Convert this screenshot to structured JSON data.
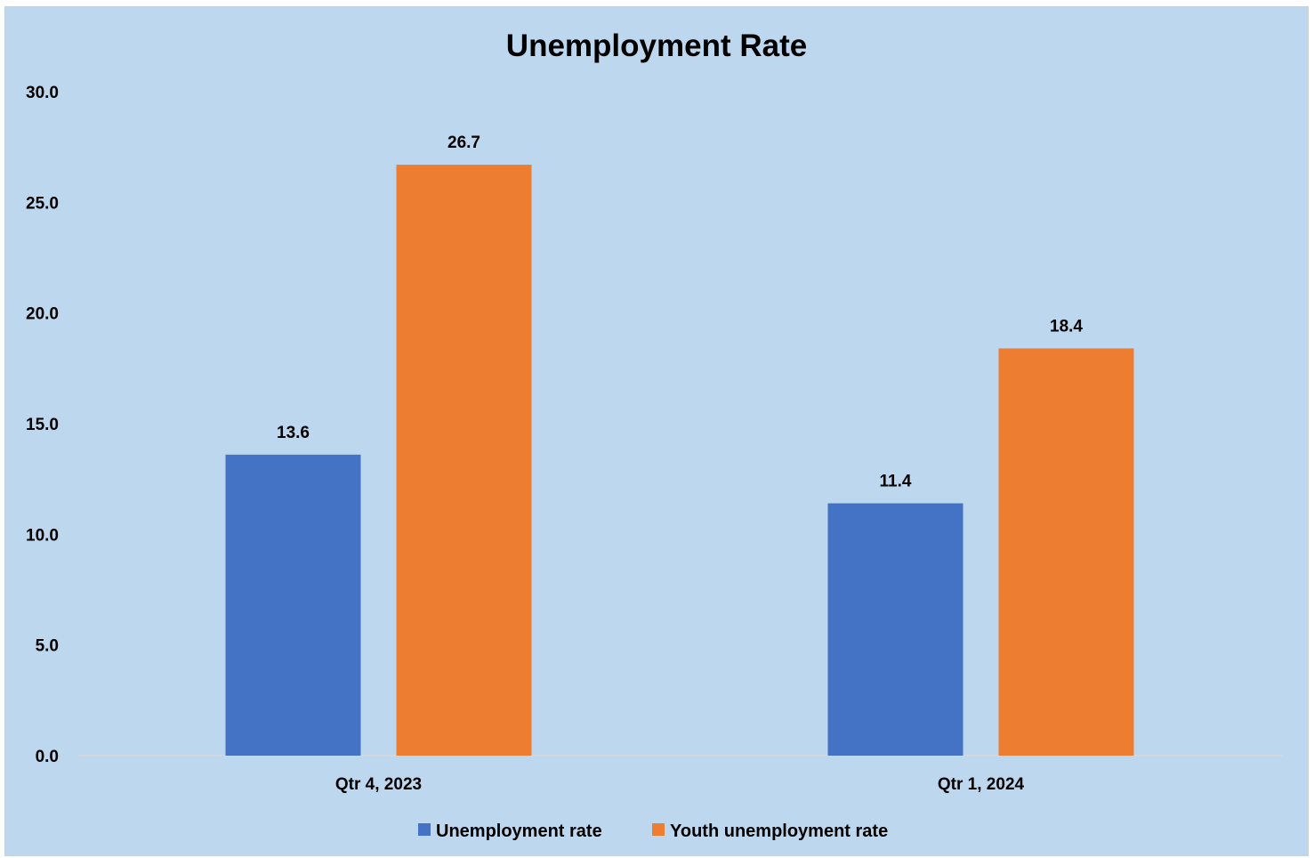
{
  "chart_data": {
    "type": "bar",
    "title": "Unemployment Rate",
    "xlabel": "",
    "ylabel": "",
    "categories": [
      "Qtr 4, 2023",
      "Qtr 1, 2024"
    ],
    "series": [
      {
        "name": "Unemployment rate",
        "values": [
          13.6,
          11.4
        ],
        "color": "#4472c4"
      },
      {
        "name": "Youth unemployment rate",
        "values": [
          26.7,
          18.4
        ],
        "color": "#ed7d31"
      }
    ],
    "ylim": [
      0,
      30
    ],
    "yticks": [
      "0.0",
      "5.0",
      "10.0",
      "15.0",
      "20.0",
      "25.0",
      "30.0"
    ],
    "data_labels": [
      [
        "13.6",
        "11.4"
      ],
      [
        "26.7",
        "18.4"
      ]
    ],
    "grid": false,
    "legend_position": "bottom",
    "background_color": "#bdd7ee"
  }
}
